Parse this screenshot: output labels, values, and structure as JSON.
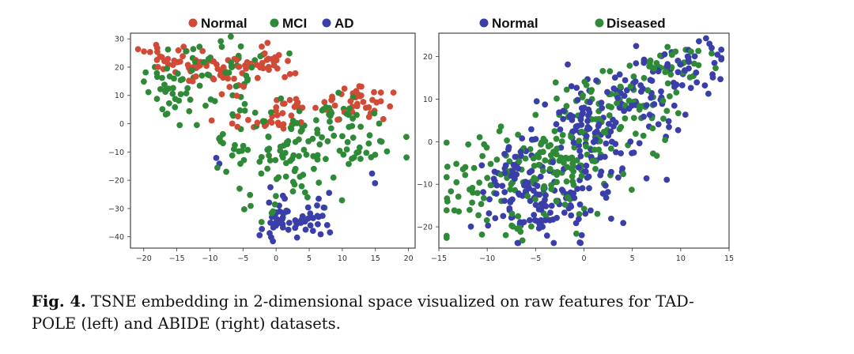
{
  "colors": {
    "normal": "#d04a36",
    "mci": "#2f8a37",
    "ad": "#3a3ea8",
    "diseased": "#2f8a37"
  },
  "caption": {
    "label": "Fig. 4.",
    "text": "TSNE embedding in 2-dimensional space visualized on raw features for TAD-POLE (left) and ABIDE (right) datasets.",
    "line1": "TSNE embedding in 2-dimensional space visualized on raw features for TAD-",
    "line2": "POLE (left) and ABIDE (right) datasets."
  },
  "chart_data": [
    {
      "type": "scatter",
      "dataset": "TADPOLE",
      "title": "",
      "xlabel": "",
      "ylabel": "",
      "xlim": [
        -22,
        21
      ],
      "ylim": [
        -44,
        32
      ],
      "xticks": [
        -20,
        -15,
        -10,
        -5,
        0,
        5,
        10,
        15,
        20
      ],
      "yticks": [
        30,
        20,
        10,
        0,
        -10,
        -20,
        -30,
        -40
      ],
      "legend": [
        "Normal",
        "MCI",
        "AD"
      ],
      "legend_position": "top",
      "grid": false,
      "series": [
        {
          "name": "Normal",
          "color": "#d04a36",
          "clusters": [
            {
              "cx": -15,
              "cy": 23,
              "sx": 2.5,
              "sy": 3.5,
              "n": 35
            },
            {
              "cx": -8,
              "cy": 17,
              "sx": 2.5,
              "sy": 3,
              "n": 30
            },
            {
              "cx": -2,
              "cy": 22,
              "sx": 2,
              "sy": 3,
              "n": 28
            },
            {
              "cx": 0,
              "cy": 0,
              "sx": 1.5,
              "sy": 2,
              "n": 15
            },
            {
              "cx": 5,
              "cy": 7,
              "sx": 2.5,
              "sy": 1.5,
              "n": 16
            },
            {
              "cx": 13,
              "cy": 8,
              "sx": 2.5,
              "sy": 3,
              "n": 35
            },
            {
              "cx": -6,
              "cy": 0,
              "sx": 1.5,
              "sy": 1.5,
              "n": 7
            }
          ]
        },
        {
          "name": "MCI",
          "color": "#2f8a37",
          "clusters": [
            {
              "cx": -15,
              "cy": 12,
              "sx": 3,
              "sy": 6,
              "n": 45
            },
            {
              "cx": -8,
              "cy": 22,
              "sx": 3,
              "sy": 4,
              "n": 30
            },
            {
              "cx": -6,
              "cy": 6,
              "sx": 2,
              "sy": 4,
              "n": 12
            },
            {
              "cx": 2,
              "cy": -12,
              "sx": 4,
              "sy": 7,
              "n": 80
            },
            {
              "cx": 7,
              "cy": 2,
              "sx": 4,
              "sy": 4,
              "n": 30
            },
            {
              "cx": 14,
              "cy": -8,
              "sx": 3,
              "sy": 4,
              "n": 22
            },
            {
              "cx": -8,
              "cy": -10,
              "sx": 1.5,
              "sy": 3,
              "n": 8
            },
            {
              "cx": -1,
              "cy": -30,
              "sx": 2,
              "sy": 2.5,
              "n": 8
            }
          ]
        },
        {
          "name": "AD",
          "color": "#3a3ea8",
          "clusters": [
            {
              "cx": 2,
              "cy": -35,
              "sx": 3.5,
              "sy": 3,
              "n": 50
            },
            {
              "cx": 5,
              "cy": -27,
              "sx": 3,
              "sy": 3,
              "n": 8
            },
            {
              "cx": -9,
              "cy": -14,
              "sx": 0.8,
              "sy": 1,
              "n": 2
            },
            {
              "cx": 15,
              "cy": -18,
              "sx": 1,
              "sy": 1,
              "n": 2
            }
          ]
        }
      ]
    },
    {
      "type": "scatter",
      "dataset": "ABIDE",
      "title": "",
      "xlabel": "",
      "ylabel": "",
      "xlim": [
        -15,
        15
      ],
      "ylim": [
        -25,
        25.5
      ],
      "xticks": [
        -15,
        -10,
        -5,
        0,
        5,
        10,
        15
      ],
      "yticks": [
        20,
        10,
        0,
        -10,
        -20
      ],
      "legend": [
        "Normal",
        "Diseased"
      ],
      "legend_position": "top",
      "grid": false,
      "series": [
        {
          "name": "Normal",
          "color": "#3a3ea8",
          "clusters": [
            {
              "cx": -5,
              "cy": -12,
              "sx": 3.5,
              "sy": 6,
              "n": 150
            },
            {
              "cx": 1,
              "cy": 2,
              "sx": 3,
              "sy": 6,
              "n": 100
            },
            {
              "cx": 7,
              "cy": 12,
              "sx": 3,
              "sy": 4,
              "n": 60
            },
            {
              "cx": 11,
              "cy": 19,
              "sx": 2,
              "sy": 2.5,
              "n": 30
            }
          ]
        },
        {
          "name": "Diseased",
          "color": "#2f8a37",
          "clusters": [
            {
              "cx": -8,
              "cy": -10,
              "sx": 3.5,
              "sy": 6,
              "n": 100
            },
            {
              "cx": -2,
              "cy": -3,
              "sx": 3,
              "sy": 6,
              "n": 90
            },
            {
              "cx": 4,
              "cy": 8,
              "sx": 3,
              "sy": 5,
              "n": 70
            },
            {
              "cx": 9,
              "cy": 18,
              "sx": 2,
              "sy": 2.5,
              "n": 30
            }
          ]
        }
      ]
    }
  ]
}
